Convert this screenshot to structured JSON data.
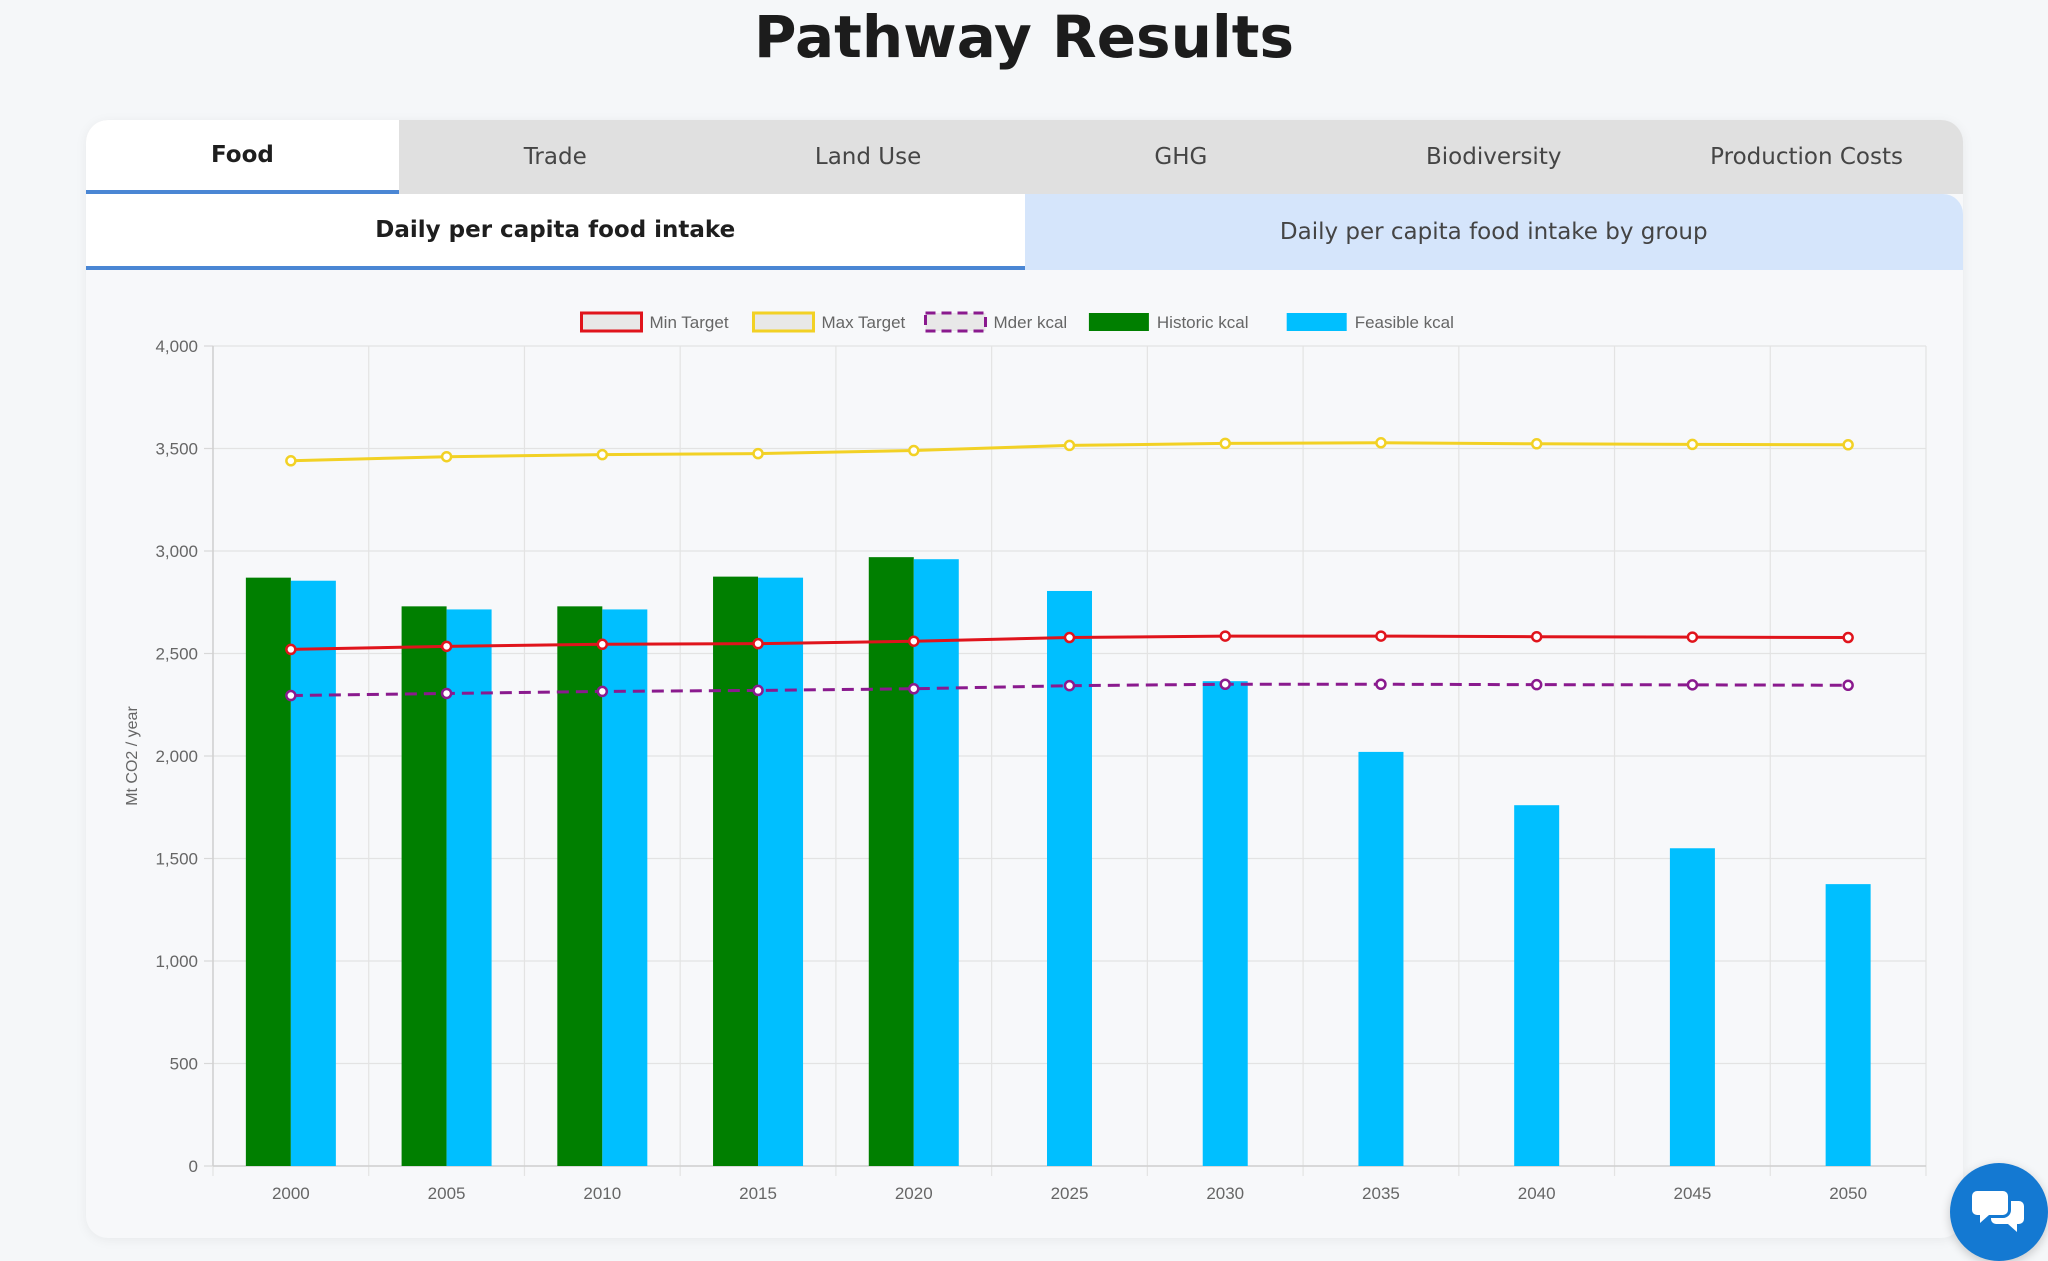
{
  "page": {
    "title": "Pathway Results"
  },
  "tabs": [
    "Food",
    "Trade",
    "Land Use",
    "GHG",
    "Biodiversity",
    "Production Costs"
  ],
  "active_tab": "Food",
  "subtabs": [
    "Daily per capita food intake",
    "Daily per capita food intake by group"
  ],
  "active_subtab": "Daily per capita food intake",
  "colors": {
    "min_target": "#e0141c",
    "max_target": "#f2d125",
    "mder": "#8a1a8e",
    "historic": "#007f00",
    "feasible": "#00bfff",
    "accent": "#4a86d4"
  },
  "chat_button": {
    "icon": "chat-bubbles-icon"
  },
  "chart_data": {
    "type": "bar",
    "title": "",
    "xlabel": "",
    "ylabel": "Mt CO2 / year",
    "ylim": [
      0,
      4000
    ],
    "yticks": [
      0,
      500,
      1000,
      1500,
      2000,
      2500,
      3000,
      3500,
      4000
    ],
    "ytick_labels": [
      "0",
      "500",
      "1,000",
      "1,500",
      "2,000",
      "2,500",
      "3,000",
      "3,500",
      "4,000"
    ],
    "grid": true,
    "legend_position": "top-center",
    "categories": [
      "2000",
      "2005",
      "2010",
      "2015",
      "2020",
      "2025",
      "2030",
      "2035",
      "2040",
      "2045",
      "2050"
    ],
    "series": [
      {
        "name": "Min Target",
        "kind": "line",
        "style": "solid",
        "color": "#e0141c",
        "values": [
          2520,
          2535,
          2545,
          2548,
          2560,
          2578,
          2585,
          2585,
          2582,
          2580,
          2578
        ]
      },
      {
        "name": "Max Target",
        "kind": "line",
        "style": "solid",
        "color": "#f2d125",
        "values": [
          3440,
          3460,
          3470,
          3475,
          3490,
          3515,
          3525,
          3528,
          3523,
          3520,
          3518
        ]
      },
      {
        "name": "Mder kcal",
        "kind": "line",
        "style": "dashed",
        "color": "#8a1a8e",
        "values": [
          2295,
          2305,
          2315,
          2320,
          2328,
          2343,
          2350,
          2350,
          2348,
          2347,
          2345
        ]
      },
      {
        "name": "Historic kcal",
        "kind": "bar",
        "color": "#007f00",
        "values": [
          2870,
          2730,
          2730,
          2875,
          2970,
          null,
          null,
          null,
          null,
          null,
          null
        ]
      },
      {
        "name": "Feasible kcal",
        "kind": "bar",
        "color": "#00bfff",
        "values": [
          2855,
          2715,
          2715,
          2870,
          2960,
          2805,
          2365,
          2020,
          1760,
          1550,
          1375
        ]
      }
    ]
  }
}
